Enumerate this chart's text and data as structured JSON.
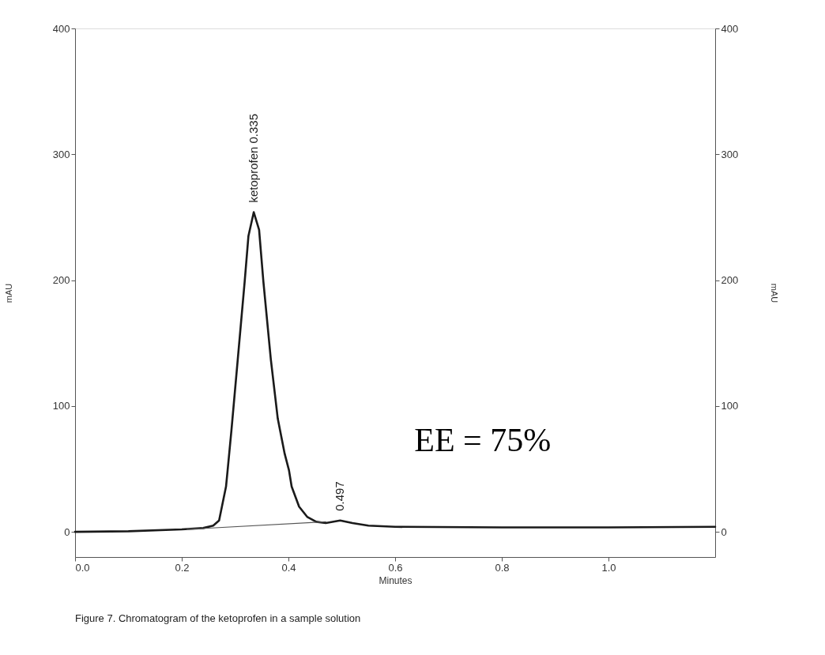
{
  "chart_data": {
    "type": "line",
    "xlabel": "Minutes",
    "ylabel": "mAU",
    "y2label": "mAU",
    "xlim": [
      0,
      1.2
    ],
    "xticks": [
      {
        "value": 0,
        "label": "0.0"
      },
      0.2,
      0.4,
      0.6,
      0.8,
      {
        "value": 1,
        "label": "1.0"
      }
    ],
    "ylim": [
      -20,
      400
    ],
    "yticks": [
      0,
      100,
      200,
      300,
      400
    ],
    "y2lim": [
      -20,
      400
    ],
    "y2ticks": [
      0,
      100,
      200,
      300,
      400
    ],
    "grid": false,
    "marker": "none",
    "line_style": "solid",
    "series": [
      {
        "color": "#1a1a1a",
        "x": [
          0,
          0.1,
          0.2,
          0.24,
          0.259,
          0.27,
          0.283,
          0.286,
          0.293,
          0.305,
          0.318,
          0.325,
          0.335,
          0.345,
          0.353,
          0.367,
          0.38,
          0.393,
          0.401,
          0.406,
          0.42,
          0.435,
          0.452,
          0.47,
          0.497,
          0.52,
          0.55,
          0.6,
          0.8,
          1.0,
          1.2
        ],
        "values": [
          0,
          0.5,
          2,
          3,
          5,
          9,
          36,
          49,
          80,
          137,
          199,
          235,
          254,
          240,
          199,
          137,
          90,
          62,
          49,
          36,
          20,
          12,
          8,
          7,
          9,
          7,
          5,
          4,
          3.5,
          3.5,
          4
        ]
      },
      {
        "color": "#555555",
        "x": [
          0.21,
          0.47
        ],
        "values": [
          2,
          8
        ]
      }
    ],
    "annotations": [
      {
        "text": "ketoprofen  0.335",
        "x": 0.335,
        "y": 254
      },
      {
        "text": "0.497",
        "x": 0.497,
        "y": 9
      },
      "EE = 75%",
      "Figure 7. Chromatogram of the ketoprofen in a sample solution"
    ]
  }
}
